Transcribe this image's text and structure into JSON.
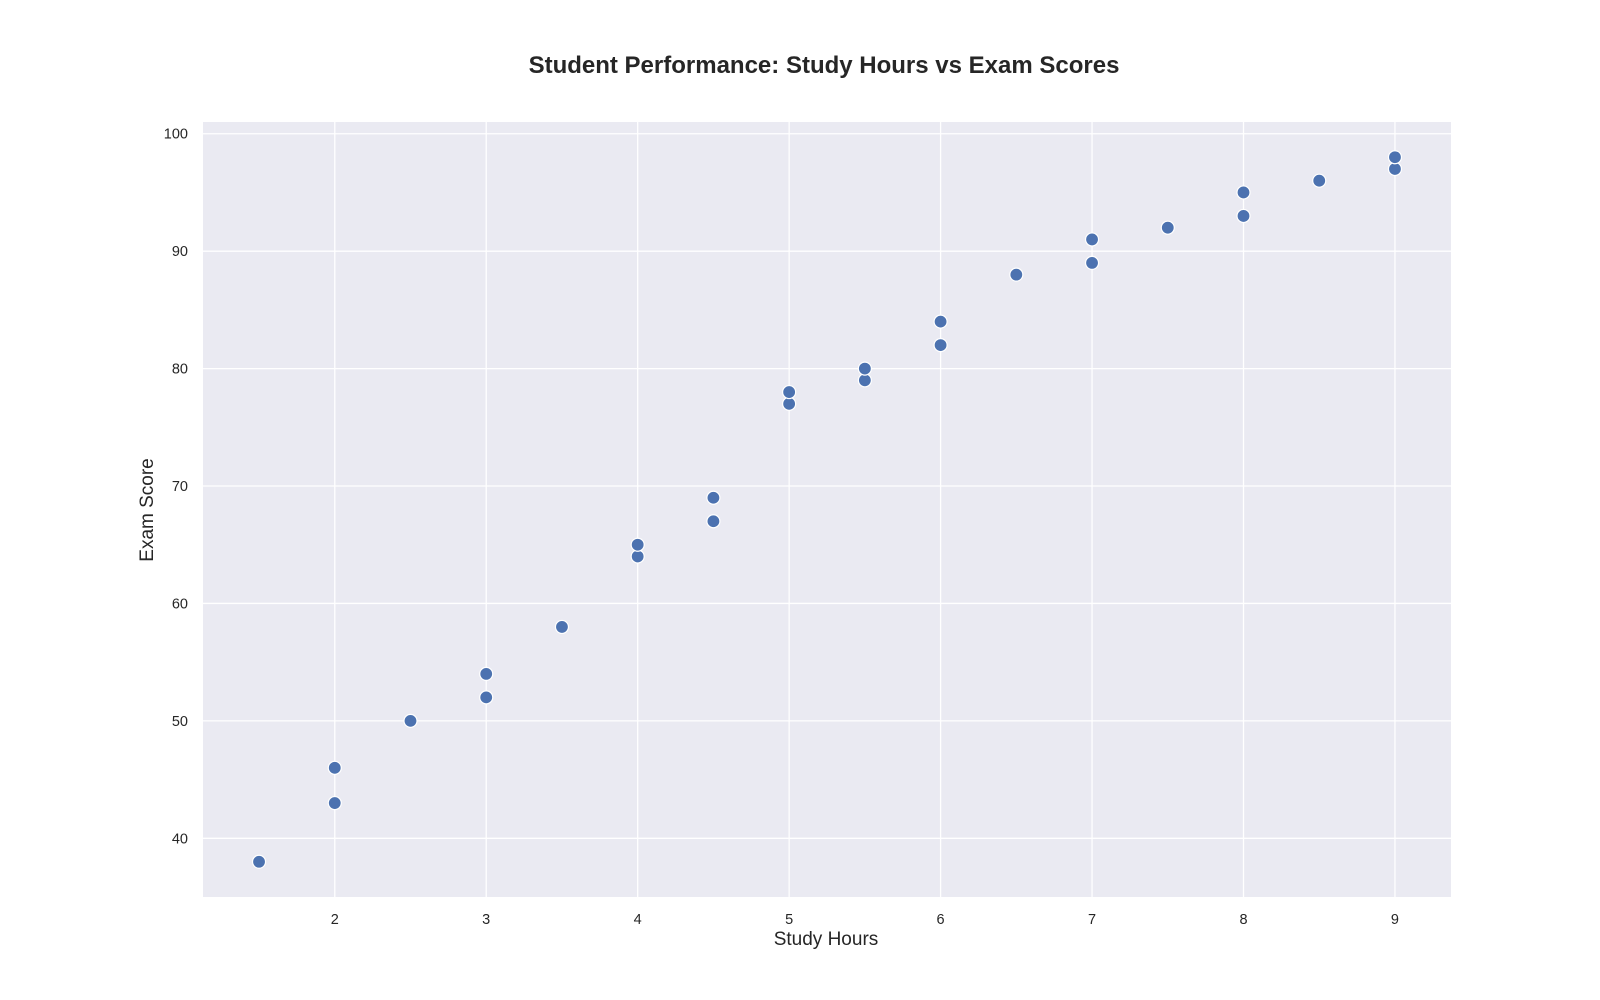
{
  "chart_data": {
    "type": "scatter",
    "title": "Student Performance: Study Hours vs Exam Scores",
    "xlabel": "Study Hours",
    "ylabel": "Exam Score",
    "xlim": [
      1.13,
      9.37
    ],
    "ylim": [
      35,
      101
    ],
    "x_ticks": [
      2,
      3,
      4,
      5,
      6,
      7,
      8,
      9
    ],
    "y_ticks": [
      40,
      50,
      60,
      70,
      80,
      90,
      100
    ],
    "grid": true,
    "colors": {
      "background": "#eaeaf2",
      "grid": "#ffffff",
      "point": "#4c72b0",
      "text": "#262626"
    },
    "points": [
      {
        "x": 1.5,
        "y": 38
      },
      {
        "x": 2,
        "y": 43
      },
      {
        "x": 2,
        "y": 46
      },
      {
        "x": 2.5,
        "y": 50
      },
      {
        "x": 3,
        "y": 52
      },
      {
        "x": 3,
        "y": 54
      },
      {
        "x": 3.5,
        "y": 58
      },
      {
        "x": 4,
        "y": 64
      },
      {
        "x": 4,
        "y": 65
      },
      {
        "x": 4.5,
        "y": 67
      },
      {
        "x": 4.5,
        "y": 69
      },
      {
        "x": 5,
        "y": 77
      },
      {
        "x": 5,
        "y": 78
      },
      {
        "x": 5.5,
        "y": 79
      },
      {
        "x": 5.5,
        "y": 80
      },
      {
        "x": 6,
        "y": 82
      },
      {
        "x": 6,
        "y": 84
      },
      {
        "x": 6.5,
        "y": 88
      },
      {
        "x": 7,
        "y": 89
      },
      {
        "x": 7,
        "y": 91
      },
      {
        "x": 7.5,
        "y": 92
      },
      {
        "x": 8,
        "y": 93
      },
      {
        "x": 8,
        "y": 95
      },
      {
        "x": 8.5,
        "y": 96
      },
      {
        "x": 9,
        "y": 97
      },
      {
        "x": 9,
        "y": 98
      }
    ]
  }
}
